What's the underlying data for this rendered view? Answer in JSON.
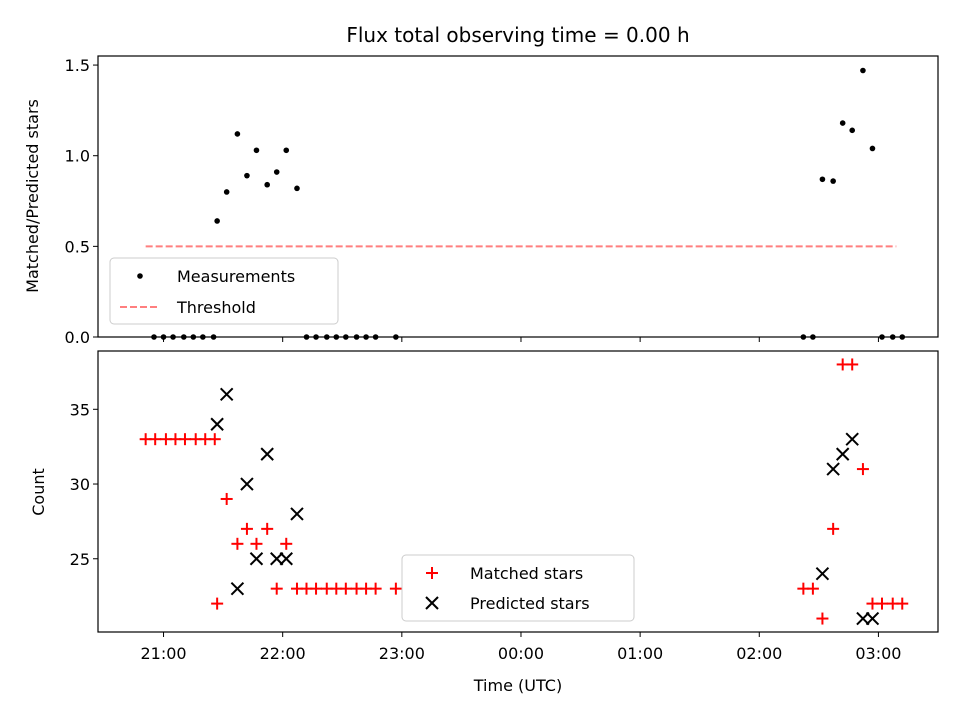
{
  "chart_data": [
    {
      "type": "scatter",
      "title": "Flux total observing time = 0.00 h",
      "xlabel": "",
      "ylabel": "Matched/Predicted stars",
      "ylim": [
        0.0,
        1.55
      ],
      "yticks": [
        "0.0",
        "0.5",
        "1.0",
        "1.5"
      ],
      "ytick_values": [
        0.0,
        0.5,
        1.0,
        1.5
      ],
      "legend_position": "lower-left",
      "series": [
        {
          "name": "Measurements",
          "color": "#000000",
          "marker": "dot",
          "x": [
            20.92,
            21.0,
            21.08,
            21.17,
            21.25,
            21.33,
            21.42,
            21.45,
            21.53,
            21.62,
            21.7,
            21.78,
            21.87,
            21.95,
            22.03,
            22.12,
            22.2,
            22.28,
            22.37,
            22.45,
            22.53,
            22.62,
            22.7,
            22.78,
            22.95,
            26.37,
            26.45,
            26.53,
            26.62,
            26.7,
            26.78,
            26.87,
            26.95,
            27.03,
            27.12,
            27.2
          ],
          "y": [
            0.0,
            0.0,
            0.0,
            0.0,
            0.0,
            0.0,
            0.0,
            0.64,
            0.8,
            1.12,
            0.89,
            1.03,
            0.84,
            0.91,
            1.03,
            0.82,
            0.0,
            0.0,
            0.0,
            0.0,
            0.0,
            0.0,
            0.0,
            0.0,
            0.0,
            0.0,
            0.0,
            0.87,
            0.86,
            1.18,
            1.14,
            1.47,
            1.04,
            0.0,
            0.0,
            0.0
          ]
        },
        {
          "name": "Threshold",
          "color": "#ff7f7f",
          "style": "dashed",
          "x": [
            20.85,
            27.15
          ],
          "y": [
            0.5,
            0.5
          ]
        }
      ]
    },
    {
      "type": "scatter",
      "title": "",
      "xlabel": "Time (UTC)",
      "ylabel": "Count",
      "ylim": [
        20.1,
        38.9
      ],
      "yticks": [
        "25",
        "30",
        "35"
      ],
      "ytick_values": [
        25,
        30,
        35
      ],
      "xlim": [
        20.45,
        27.5
      ],
      "xticks": [
        "21:00",
        "22:00",
        "23:00",
        "00:00",
        "01:00",
        "02:00",
        "03:00"
      ],
      "xtick_values": [
        21,
        22,
        23,
        24,
        25,
        26,
        27
      ],
      "legend_position": "lower-center",
      "series": [
        {
          "name": "Matched stars",
          "color": "#ff0000",
          "marker": "plus",
          "x": [
            20.85,
            20.93,
            21.02,
            21.1,
            21.18,
            21.27,
            21.35,
            21.43,
            21.45,
            21.53,
            21.62,
            21.7,
            21.78,
            21.87,
            21.95,
            22.03,
            22.12,
            22.2,
            22.28,
            22.37,
            22.45,
            22.53,
            22.62,
            22.7,
            22.78,
            22.95,
            26.37,
            26.45,
            26.53,
            26.62,
            26.7,
            26.78,
            26.87,
            26.95,
            27.03,
            27.12,
            27.2
          ],
          "y": [
            33,
            33,
            33,
            33,
            33,
            33,
            33,
            33,
            22,
            29,
            26,
            27,
            26,
            27,
            23,
            26,
            23,
            23,
            23,
            23,
            23,
            23,
            23,
            23,
            23,
            23,
            23,
            23,
            21,
            27,
            38,
            38,
            31,
            22,
            22,
            22,
            22
          ]
        },
        {
          "name": "Predicted stars",
          "color": "#000000",
          "marker": "x",
          "x": [
            21.45,
            21.53,
            21.62,
            21.7,
            21.78,
            21.87,
            21.95,
            22.03,
            22.12,
            26.53,
            26.62,
            26.7,
            26.78,
            26.87,
            26.95
          ],
          "y": [
            34,
            36,
            23,
            30,
            25,
            32,
            25,
            25,
            28,
            24,
            31,
            32,
            33,
            21,
            21
          ]
        }
      ]
    }
  ]
}
